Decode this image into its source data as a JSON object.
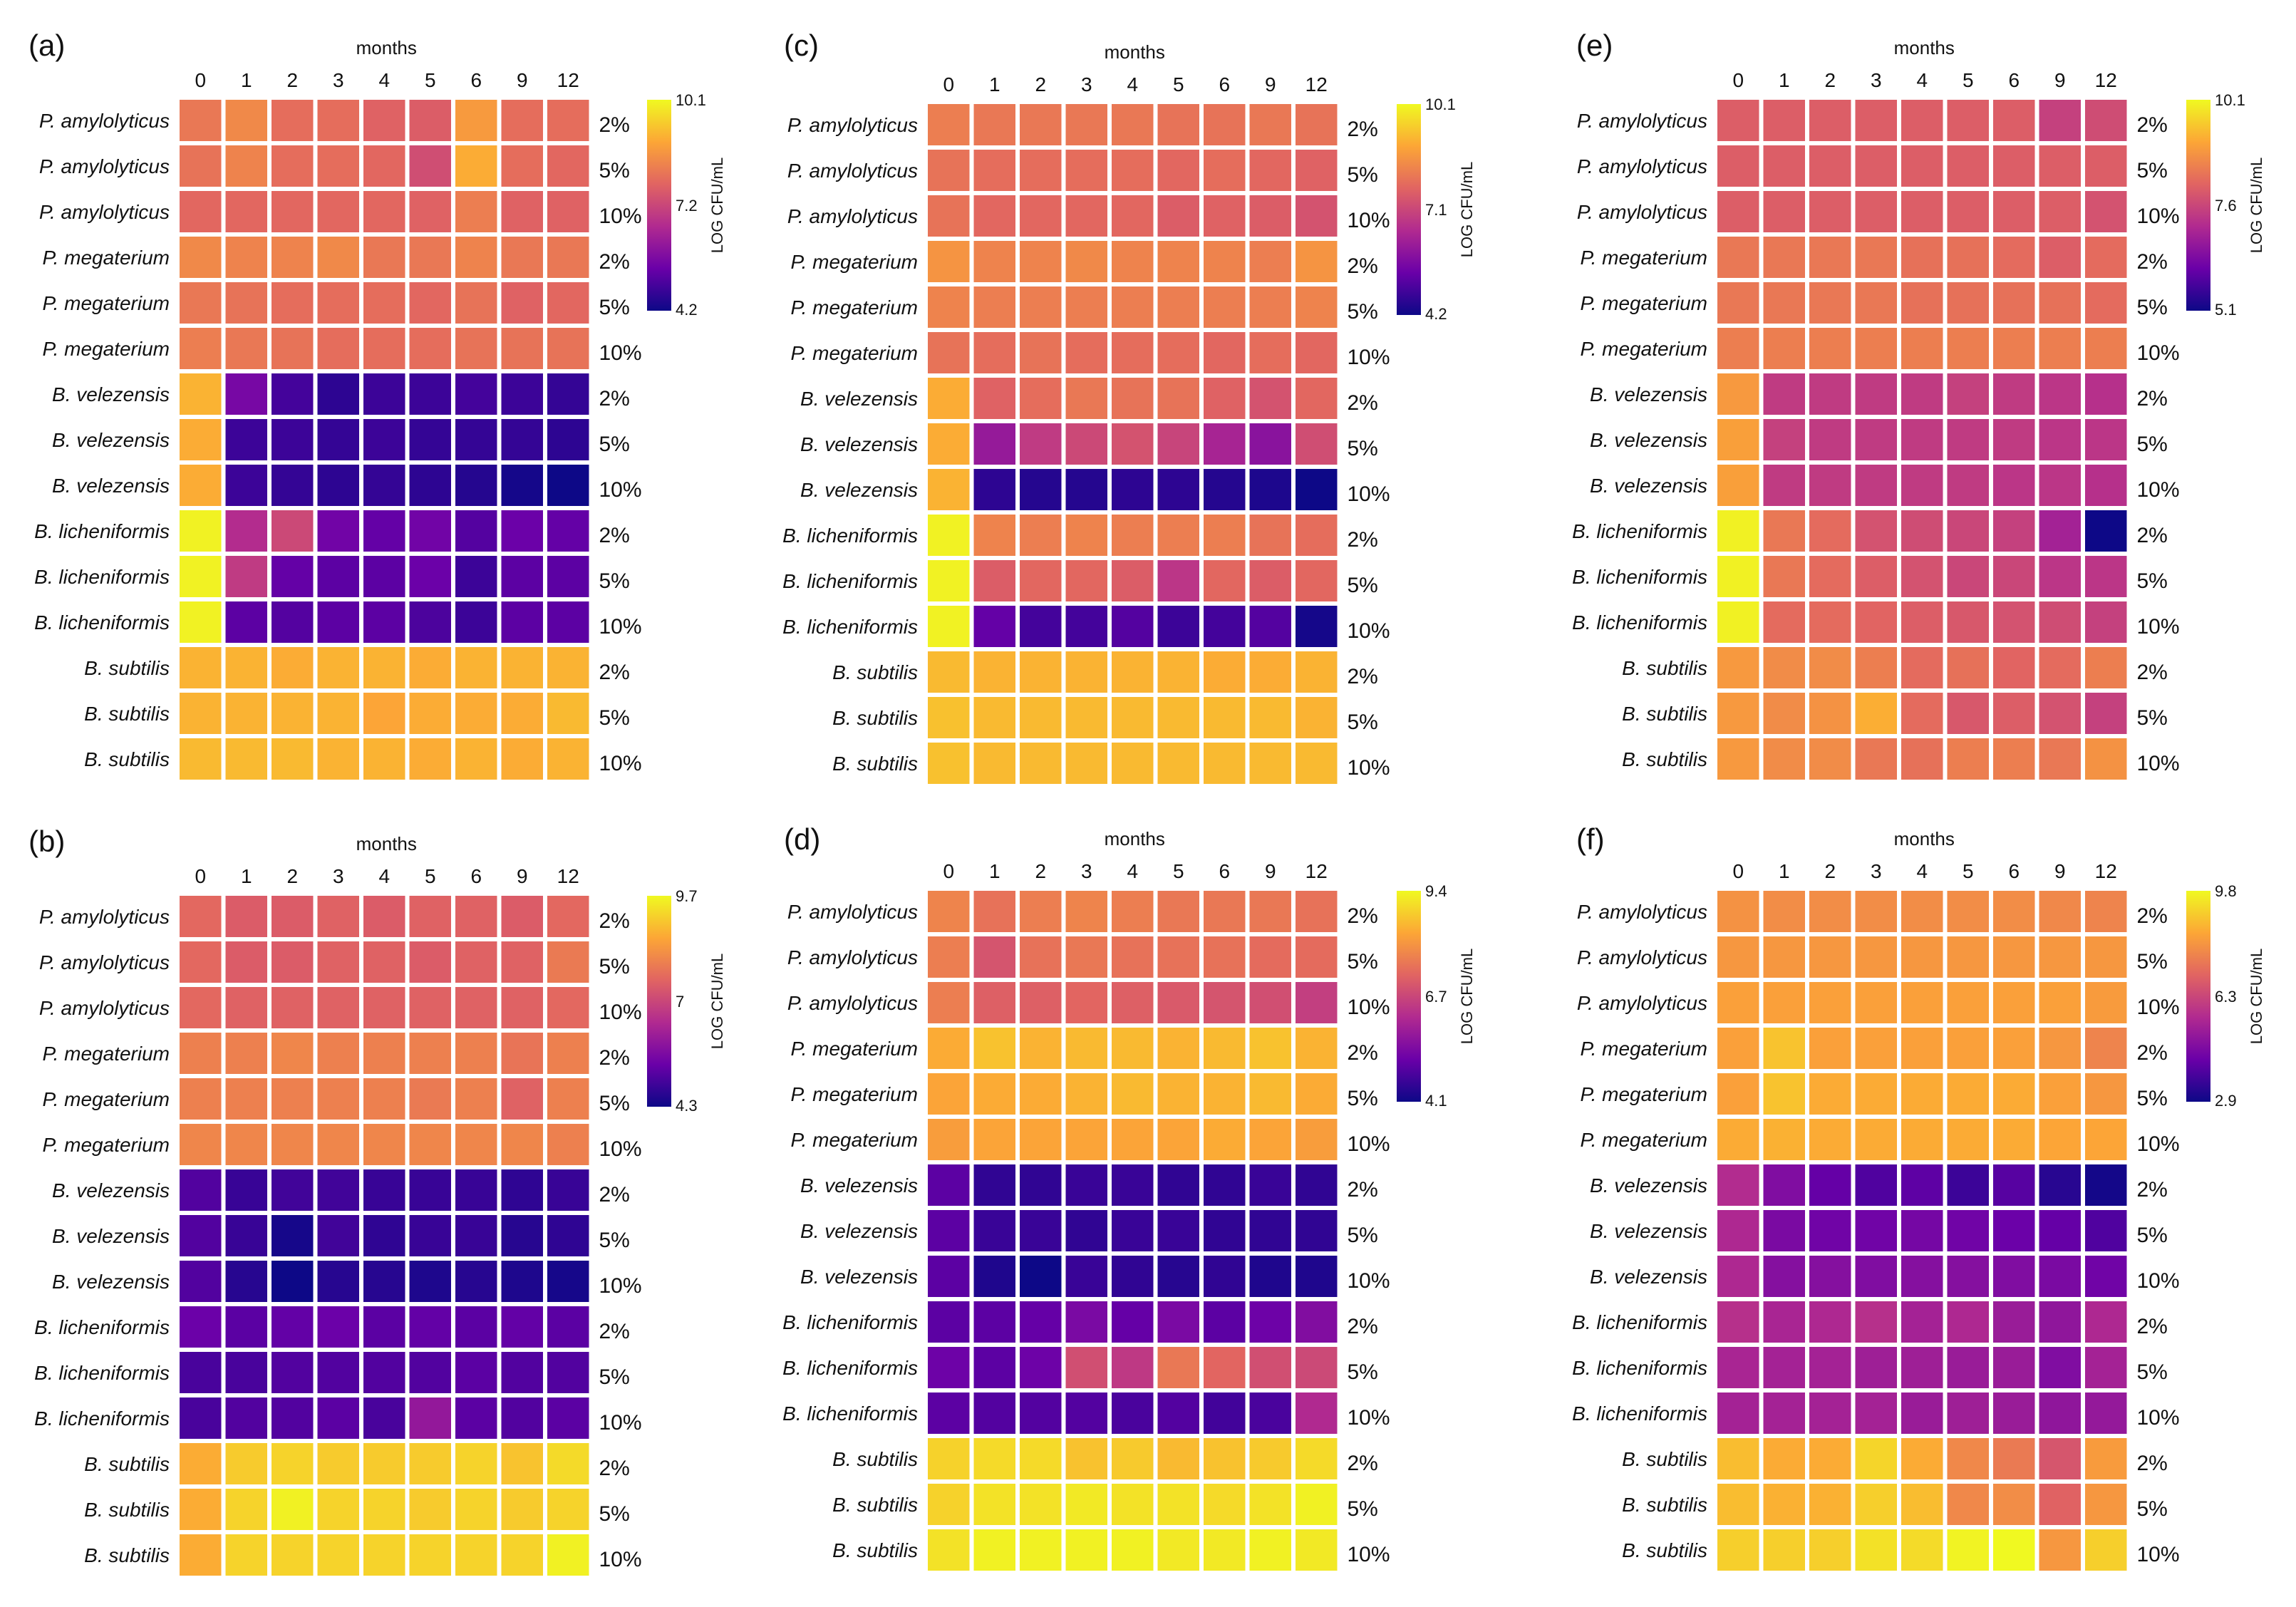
{
  "figure": {
    "x_title": "months",
    "colorbar_title": "LOG CFU/mL",
    "months": [
      "0",
      "1",
      "2",
      "3",
      "4",
      "5",
      "6",
      "9",
      "12"
    ],
    "rows": [
      {
        "species": "P. amylolyticus",
        "conc": "2%"
      },
      {
        "species": "P. amylolyticus",
        "conc": "5%"
      },
      {
        "species": "P. amylolyticus",
        "conc": "10%"
      },
      {
        "species": "P. megaterium",
        "conc": "2%"
      },
      {
        "species": "P. megaterium",
        "conc": "5%"
      },
      {
        "species": "P. megaterium",
        "conc": "10%"
      },
      {
        "species": "B. velezensis",
        "conc": "2%"
      },
      {
        "species": "B. velezensis",
        "conc": "5%"
      },
      {
        "species": "B. velezensis",
        "conc": "10%"
      },
      {
        "species": "B. licheniformis",
        "conc": "2%"
      },
      {
        "species": "B. licheniformis",
        "conc": "5%"
      },
      {
        "species": "B. licheniformis",
        "conc": "10%"
      },
      {
        "species": "B. subtilis",
        "conc": "2%"
      },
      {
        "species": "B. subtilis",
        "conc": "5%"
      },
      {
        "species": "B. subtilis",
        "conc": "10%"
      }
    ],
    "colormap": [
      "#0d0887",
      "#6a00a8",
      "#b12a90",
      "#e16462",
      "#fca636",
      "#f0f921"
    ]
  },
  "chart_data": [
    {
      "type": "heatmap",
      "panel": "(a)",
      "colorbar": {
        "min": 4.2,
        "mid": 7.2,
        "max": 10.1,
        "labels": [
          "10.1",
          "7.2",
          "4.2"
        ]
      },
      "values": [
        [
          8.1,
          8.4,
          7.9,
          7.9,
          7.7,
          7.6,
          8.7,
          7.9,
          7.9
        ],
        [
          8.0,
          8.3,
          7.9,
          7.9,
          7.8,
          7.3,
          9.0,
          7.9,
          7.8
        ],
        [
          7.8,
          7.8,
          7.8,
          7.8,
          7.8,
          7.7,
          8.2,
          7.7,
          7.7
        ],
        [
          8.4,
          8.3,
          8.3,
          8.4,
          8.1,
          8.1,
          8.3,
          8.1,
          8.1
        ],
        [
          8.1,
          8.0,
          7.9,
          7.9,
          7.9,
          7.8,
          8.0,
          7.7,
          7.8
        ],
        [
          8.2,
          8.1,
          8.0,
          7.9,
          7.9,
          7.9,
          8.0,
          8.0,
          8.0
        ],
        [
          9.1,
          5.6,
          4.9,
          4.6,
          4.8,
          4.8,
          4.9,
          4.8,
          4.7
        ],
        [
          9.0,
          4.8,
          4.8,
          4.7,
          4.8,
          4.7,
          4.7,
          4.7,
          4.6
        ],
        [
          9.0,
          4.8,
          4.7,
          4.6,
          4.7,
          4.6,
          4.5,
          4.3,
          4.2
        ],
        [
          10.0,
          6.6,
          7.2,
          5.5,
          5.3,
          5.5,
          5.1,
          5.4,
          5.3
        ],
        [
          10.0,
          6.9,
          5.3,
          5.2,
          5.2,
          5.4,
          4.8,
          5.2,
          5.2
        ],
        [
          10.0,
          5.2,
          5.1,
          5.2,
          5.2,
          5.0,
          4.8,
          5.2,
          5.2
        ],
        [
          9.1,
          9.1,
          9.0,
          9.1,
          9.1,
          9.0,
          9.1,
          9.1,
          9.1
        ],
        [
          9.1,
          9.1,
          9.1,
          9.1,
          8.9,
          9.0,
          9.0,
          9.0,
          9.2
        ],
        [
          9.2,
          9.2,
          9.2,
          9.1,
          9.1,
          9.0,
          9.1,
          9.0,
          9.1
        ]
      ]
    },
    {
      "type": "heatmap",
      "panel": "(b)",
      "colorbar": {
        "min": 4.3,
        "mid": 7.0,
        "max": 9.7,
        "labels": [
          "9.7",
          "7",
          "4.3"
        ]
      },
      "values": [
        [
          7.6,
          7.4,
          7.4,
          7.5,
          7.4,
          7.5,
          7.5,
          7.4,
          7.6
        ],
        [
          7.6,
          7.4,
          7.4,
          7.5,
          7.5,
          7.4,
          7.5,
          7.5,
          7.9
        ],
        [
          7.6,
          7.5,
          7.5,
          7.5,
          7.5,
          7.5,
          7.5,
          7.5,
          7.6
        ],
        [
          8.0,
          8.0,
          8.1,
          8.0,
          8.0,
          8.0,
          8.0,
          7.8,
          8.0
        ],
        [
          8.0,
          8.0,
          8.0,
          8.0,
          8.0,
          7.9,
          8.0,
          7.5,
          8.0
        ],
        [
          8.1,
          8.1,
          8.1,
          8.1,
          8.1,
          8.1,
          8.1,
          8.1,
          8.0
        ],
        [
          5.1,
          4.8,
          4.9,
          4.9,
          4.8,
          4.8,
          4.8,
          4.7,
          4.8
        ],
        [
          5.1,
          4.8,
          4.4,
          4.9,
          4.7,
          4.8,
          4.8,
          4.6,
          4.7
        ],
        [
          5.1,
          4.6,
          4.3,
          4.6,
          4.6,
          4.5,
          4.6,
          4.5,
          4.4
        ],
        [
          5.4,
          5.2,
          5.3,
          5.4,
          5.2,
          5.3,
          5.2,
          5.3,
          5.2
        ],
        [
          5.0,
          5.0,
          5.1,
          5.1,
          5.1,
          5.1,
          5.2,
          5.1,
          5.1
        ],
        [
          5.0,
          5.1,
          5.1,
          5.2,
          5.0,
          6.0,
          5.2,
          5.1,
          5.2
        ],
        [
          8.7,
          9.1,
          9.2,
          9.1,
          9.1,
          9.1,
          9.2,
          9.0,
          9.3
        ],
        [
          8.7,
          9.2,
          9.6,
          9.2,
          9.2,
          9.1,
          9.2,
          9.1,
          9.2
        ],
        [
          8.7,
          9.2,
          9.2,
          9.2,
          9.2,
          9.2,
          9.2,
          9.2,
          9.6
        ]
      ]
    },
    {
      "type": "heatmap",
      "panel": "(c)",
      "colorbar": {
        "min": 4.2,
        "mid": 7.1,
        "max": 10.1,
        "labels": [
          "10.1",
          "7.1",
          "4.2"
        ]
      },
      "values": [
        [
          8.2,
          8.1,
          8.1,
          8.1,
          8.1,
          8.0,
          8.0,
          8.1,
          8.0
        ],
        [
          8.0,
          7.9,
          7.9,
          7.9,
          7.9,
          7.8,
          7.9,
          7.8,
          7.7
        ],
        [
          8.0,
          7.8,
          7.8,
          7.8,
          7.8,
          7.6,
          7.7,
          7.6,
          7.4
        ],
        [
          8.6,
          8.3,
          8.3,
          8.4,
          8.3,
          8.3,
          8.3,
          8.2,
          8.6
        ],
        [
          8.3,
          8.2,
          8.2,
          8.2,
          8.2,
          8.2,
          8.2,
          8.2,
          8.3
        ],
        [
          8.0,
          7.9,
          8.0,
          7.9,
          7.9,
          7.9,
          7.8,
          7.9,
          7.8
        ],
        [
          9.0,
          7.7,
          7.9,
          8.1,
          8.0,
          8.0,
          7.7,
          7.4,
          7.8
        ],
        [
          9.0,
          6.1,
          6.9,
          7.2,
          7.4,
          7.1,
          6.4,
          5.9,
          7.3
        ],
        [
          9.1,
          4.6,
          4.5,
          4.5,
          4.6,
          4.6,
          4.5,
          4.4,
          4.2
        ],
        [
          10.0,
          8.3,
          8.2,
          8.3,
          8.2,
          8.2,
          8.2,
          8.0,
          7.9
        ],
        [
          10.0,
          7.6,
          7.8,
          7.8,
          7.6,
          6.8,
          7.8,
          7.6,
          7.8
        ],
        [
          10.0,
          5.3,
          4.9,
          4.9,
          5.1,
          4.8,
          4.9,
          5.1,
          4.3
        ],
        [
          9.2,
          9.1,
          9.1,
          9.1,
          9.1,
          9.1,
          9.0,
          9.0,
          9.1
        ],
        [
          9.3,
          9.2,
          9.2,
          9.2,
          9.2,
          9.2,
          9.2,
          9.2,
          9.1
        ],
        [
          9.3,
          9.2,
          9.2,
          9.2,
          9.2,
          9.2,
          9.2,
          9.2,
          9.2
        ]
      ]
    },
    {
      "type": "heatmap",
      "panel": "(d)",
      "colorbar": {
        "min": 4.1,
        "mid": 6.7,
        "max": 9.4,
        "labels": [
          "9.4",
          "6.7",
          "4.1"
        ]
      },
      "values": [
        [
          7.8,
          7.5,
          7.7,
          7.8,
          7.7,
          7.6,
          7.6,
          7.6,
          7.5
        ],
        [
          7.7,
          7.0,
          7.5,
          7.6,
          7.5,
          7.5,
          7.5,
          7.4,
          7.4
        ],
        [
          7.7,
          7.2,
          7.2,
          7.3,
          7.2,
          7.1,
          7.0,
          6.9,
          6.6
        ],
        [
          8.4,
          8.7,
          8.5,
          8.6,
          8.6,
          8.5,
          8.6,
          8.7,
          8.5
        ],
        [
          8.3,
          8.4,
          8.4,
          8.5,
          8.6,
          8.5,
          8.5,
          8.6,
          8.4
        ],
        [
          8.2,
          8.3,
          8.3,
          8.3,
          8.3,
          8.3,
          8.4,
          8.3,
          8.2
        ],
        [
          5.0,
          4.5,
          4.5,
          4.6,
          4.6,
          4.5,
          4.5,
          4.6,
          4.5
        ],
        [
          5.0,
          4.6,
          4.6,
          4.5,
          4.6,
          4.6,
          4.5,
          4.5,
          4.5
        ],
        [
          5.0,
          4.3,
          4.1,
          4.6,
          4.5,
          4.4,
          4.5,
          4.3,
          4.3
        ],
        [
          5.0,
          5.0,
          5.1,
          5.4,
          5.1,
          5.4,
          5.0,
          5.2,
          5.5
        ],
        [
          5.2,
          5.0,
          5.2,
          6.9,
          6.5,
          7.6,
          7.3,
          6.9,
          6.8
        ],
        [
          5.0,
          4.9,
          4.9,
          4.9,
          4.8,
          4.9,
          4.7,
          4.8,
          6.2
        ],
        [
          8.9,
          9.0,
          9.0,
          8.7,
          8.8,
          8.6,
          8.7,
          8.8,
          9.0
        ],
        [
          8.9,
          9.1,
          9.1,
          9.2,
          9.1,
          9.1,
          9.0,
          9.1,
          9.3
        ],
        [
          9.1,
          9.3,
          9.3,
          9.3,
          9.3,
          9.2,
          9.2,
          9.3,
          9.2
        ]
      ]
    },
    {
      "type": "heatmap",
      "panel": "(e)",
      "colorbar": {
        "min": 5.1,
        "mid": 7.6,
        "max": 10.1,
        "labels": [
          "10.1",
          "7.6",
          "5.1"
        ]
      },
      "values": [
        [
          8.0,
          8.0,
          8.0,
          8.0,
          8.0,
          8.0,
          8.0,
          7.5,
          7.7
        ],
        [
          8.0,
          8.0,
          8.0,
          8.0,
          8.0,
          8.0,
          8.0,
          8.0,
          8.0
        ],
        [
          8.0,
          8.0,
          8.0,
          8.0,
          8.0,
          8.0,
          8.0,
          8.0,
          7.8
        ],
        [
          8.4,
          8.4,
          8.4,
          8.4,
          8.3,
          8.3,
          8.2,
          8.0,
          8.2
        ],
        [
          8.4,
          8.4,
          8.4,
          8.4,
          8.3,
          8.3,
          8.3,
          8.3,
          8.2
        ],
        [
          8.5,
          8.5,
          8.5,
          8.5,
          8.5,
          8.5,
          8.5,
          8.5,
          8.5
        ],
        [
          8.9,
          7.4,
          7.4,
          7.4,
          7.4,
          7.5,
          7.4,
          7.3,
          7.2
        ],
        [
          9.0,
          7.5,
          7.4,
          7.4,
          7.4,
          7.4,
          7.4,
          7.3,
          7.3
        ],
        [
          9.0,
          7.4,
          7.4,
          7.4,
          7.4,
          7.4,
          7.3,
          7.3,
          7.2
        ],
        [
          10.0,
          8.4,
          8.2,
          7.8,
          7.7,
          7.6,
          7.5,
          6.9,
          5.1
        ],
        [
          10.0,
          8.4,
          8.2,
          8.0,
          7.8,
          7.6,
          7.6,
          7.3,
          7.3
        ],
        [
          10.0,
          8.2,
          8.2,
          8.1,
          8.0,
          7.9,
          7.8,
          7.7,
          7.5
        ],
        [
          8.9,
          8.7,
          8.7,
          8.5,
          8.2,
          8.3,
          8.1,
          8.2,
          8.5
        ],
        [
          8.9,
          8.7,
          8.8,
          9.2,
          8.2,
          7.9,
          8.0,
          7.8,
          7.5
        ],
        [
          8.9,
          8.7,
          8.7,
          8.4,
          8.3,
          8.5,
          8.5,
          8.4,
          8.8
        ]
      ]
    },
    {
      "type": "heatmap",
      "panel": "(f)",
      "colorbar": {
        "min": 2.9,
        "mid": 6.3,
        "max": 9.8,
        "labels": [
          "9.8",
          "6.3",
          "2.9"
        ]
      },
      "values": [
        [
          8.0,
          7.9,
          7.9,
          7.9,
          7.9,
          7.9,
          7.9,
          7.8,
          7.7
        ],
        [
          8.1,
          8.1,
          8.1,
          8.1,
          8.1,
          8.1,
          8.1,
          8.1,
          8.1
        ],
        [
          8.3,
          8.3,
          8.3,
          8.3,
          8.3,
          8.3,
          8.3,
          8.3,
          8.2
        ],
        [
          8.3,
          8.9,
          8.3,
          8.3,
          8.3,
          8.3,
          8.3,
          8.1,
          7.7
        ],
        [
          8.3,
          8.9,
          8.5,
          8.5,
          8.5,
          8.5,
          8.5,
          8.3,
          8.1
        ],
        [
          8.5,
          8.6,
          8.5,
          8.5,
          8.5,
          8.5,
          8.5,
          8.4,
          8.4
        ],
        [
          5.7,
          4.7,
          4.2,
          3.9,
          4.1,
          3.6,
          4.0,
          3.3,
          3.0
        ],
        [
          5.6,
          4.6,
          4.4,
          4.4,
          4.5,
          4.4,
          4.3,
          4.2,
          3.9
        ],
        [
          5.6,
          4.8,
          4.8,
          4.7,
          4.8,
          4.8,
          4.7,
          4.6,
          4.4
        ],
        [
          5.8,
          5.5,
          5.6,
          5.8,
          5.4,
          5.6,
          5.2,
          5.0,
          5.6
        ],
        [
          5.5,
          5.4,
          5.4,
          5.3,
          5.3,
          5.2,
          5.2,
          4.7,
          5.4
        ],
        [
          5.4,
          5.4,
          5.4,
          5.4,
          5.2,
          5.3,
          5.2,
          5.0,
          5.1
        ],
        [
          8.8,
          8.5,
          8.5,
          9.2,
          8.5,
          7.8,
          7.5,
          6.7,
          8.2
        ],
        [
          8.8,
          8.6,
          8.6,
          9.1,
          8.8,
          7.8,
          7.9,
          7.0,
          8.1
        ],
        [
          9.1,
          9.1,
          9.1,
          9.4,
          9.3,
          9.7,
          9.8,
          8.1,
          9.1
        ]
      ]
    }
  ]
}
